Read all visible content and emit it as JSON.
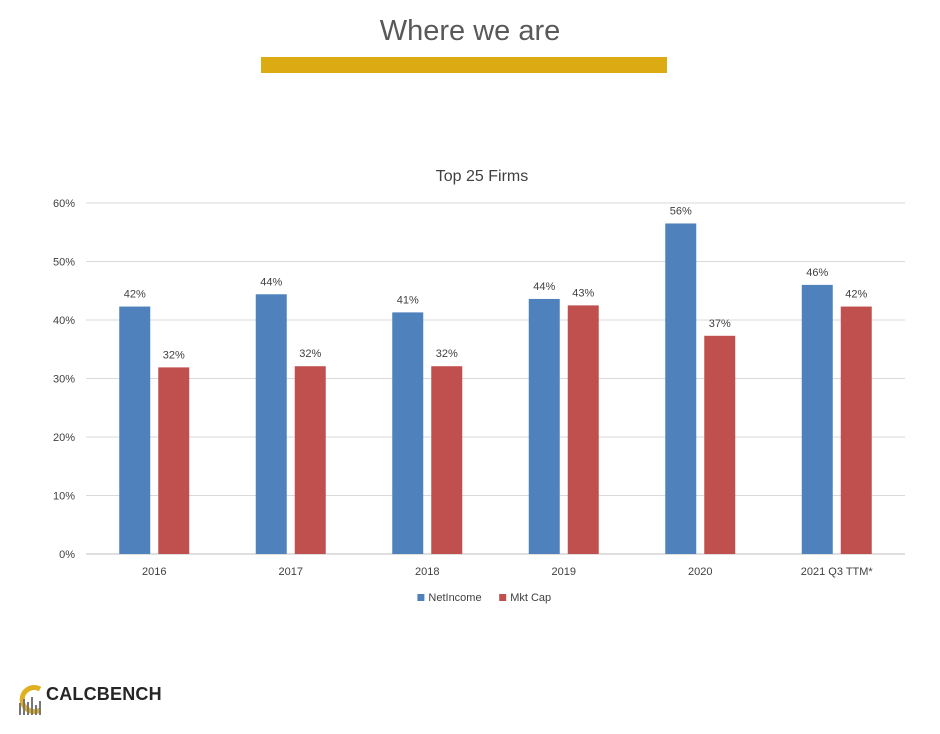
{
  "slide": {
    "title": "Where we are",
    "accent_color": "#dcab13"
  },
  "logo": {
    "text": "CALCBENCH",
    "icon": "calcbench-logo-icon"
  },
  "chart_data": {
    "type": "bar",
    "title": "Top 25 Firms",
    "categories": [
      "2016",
      "2017",
      "2018",
      "2019",
      "2020",
      "2021 Q3 TTM*"
    ],
    "series": [
      {
        "name": "NetIncome",
        "color": "#4f81bd",
        "values": [
          42.3,
          44.4,
          41.3,
          43.6,
          56.5,
          46.0
        ],
        "labels": [
          "42%",
          "44%",
          "41%",
          "44%",
          "56%",
          "46%"
        ]
      },
      {
        "name": "Mkt Cap",
        "color": "#c0504d",
        "values": [
          31.9,
          32.1,
          32.1,
          42.5,
          37.3,
          42.3
        ],
        "labels": [
          "32%",
          "32%",
          "32%",
          "43%",
          "37%",
          "42%"
        ]
      }
    ],
    "ylim": [
      0,
      60
    ],
    "yticks": [
      0,
      10,
      20,
      30,
      40,
      50,
      60
    ],
    "ytick_labels": [
      "0%",
      "10%",
      "20%",
      "30%",
      "40%",
      "50%",
      "60%"
    ],
    "xlabel": "",
    "ylabel": "",
    "grid": true,
    "legend_position": "bottom"
  }
}
